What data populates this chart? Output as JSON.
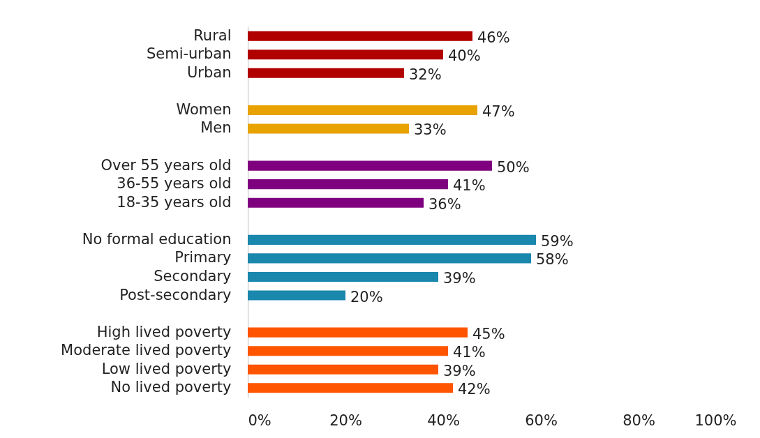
{
  "chart_data": {
    "type": "bar",
    "orientation": "horizontal",
    "categories": [
      "Rural",
      "Semi-urban",
      "Urban",
      null,
      "Women",
      "Men",
      null,
      "Over 55 years old",
      "36-55 years old",
      "18-35 years old",
      null,
      "No formal education",
      "Primary",
      "Secondary",
      "Post-secondary",
      null,
      "High lived poverty",
      "Moderate lived poverty",
      "Low lived poverty",
      "No lived poverty"
    ],
    "values": [
      46,
      40,
      32,
      null,
      47,
      33,
      null,
      50,
      41,
      36,
      null,
      59,
      58,
      39,
      20,
      null,
      45,
      41,
      39,
      42
    ],
    "colors": [
      "#b00000",
      "#b00000",
      "#b00000",
      null,
      "#e8a202",
      "#e8a202",
      null,
      "#7f007f",
      "#7f007f",
      "#7f007f",
      null,
      "#1a87ad",
      "#1a87ad",
      "#1a87ad",
      "#1a87ad",
      null,
      "#ff5400",
      "#ff5400",
      "#ff5400",
      "#ff5400"
    ],
    "value_labels": [
      "46%",
      "40%",
      "32%",
      null,
      "47%",
      "33%",
      null,
      "50%",
      "41%",
      "36%",
      null,
      "59%",
      "58%",
      "39%",
      "20%",
      null,
      "45%",
      "41%",
      "39%",
      "42%"
    ],
    "xlim": [
      0,
      100
    ],
    "xticks": [
      {
        "value": 0,
        "label": "0%"
      },
      {
        "value": 20,
        "label": "20%"
      },
      {
        "value": 40,
        "label": "40%"
      },
      {
        "value": 60,
        "label": "60%"
      },
      {
        "value": 80,
        "label": "80%"
      },
      {
        "value": 100,
        "label": "100%"
      }
    ]
  }
}
